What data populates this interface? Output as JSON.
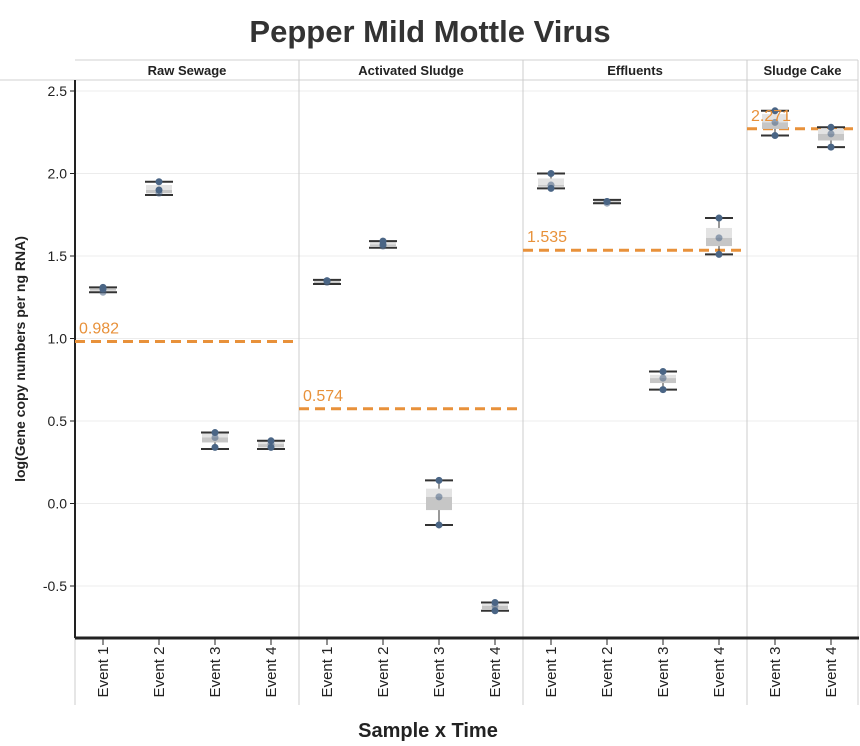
{
  "chart_data": {
    "type": "box",
    "title": "Pepper Mild Mottle Virus",
    "xlabel": "Sample x Time",
    "ylabel": "log(Gene copy numbers per ng RNA)",
    "ylim": [
      -0.82,
      2.58
    ],
    "yticks": [
      "2.5",
      "2.0",
      "1.5",
      "1.0",
      "0.5",
      "0.0",
      "-0.5"
    ],
    "grid": true,
    "panels": [
      {
        "name": "Raw Sewage",
        "mean": 0.982,
        "mean_label": "0.982",
        "events": [
          {
            "label": "Event 1",
            "points": [
              1.3,
              1.28,
              1.31
            ],
            "box": [
              1.28,
              1.29,
              1.3,
              1.305,
              1.31
            ]
          },
          {
            "label": "Event 2",
            "points": [
              1.95,
              1.88,
              1.9
            ],
            "box": [
              1.87,
              1.88,
              1.9,
              1.93,
              1.95
            ]
          },
          {
            "label": "Event 3",
            "points": [
              0.43,
              0.4,
              0.34
            ],
            "box": [
              0.33,
              0.37,
              0.4,
              0.43,
              0.43
            ]
          },
          {
            "label": "Event 4",
            "points": [
              0.38,
              0.36,
              0.34
            ],
            "box": [
              0.33,
              0.34,
              0.36,
              0.38,
              0.38
            ]
          }
        ]
      },
      {
        "name": "Activated Sludge",
        "mean": 0.574,
        "mean_label": "0.574",
        "events": [
          {
            "label": "Event 1",
            "points": [
              1.35,
              1.34,
              1.35
            ],
            "box": [
              1.33,
              1.34,
              1.345,
              1.35,
              1.355
            ]
          },
          {
            "label": "Event 2",
            "points": [
              1.59,
              1.56,
              1.57
            ],
            "box": [
              1.55,
              1.56,
              1.57,
              1.585,
              1.59
            ]
          },
          {
            "label": "Event 3",
            "points": [
              0.14,
              0.04,
              -0.13
            ],
            "box": [
              -0.13,
              -0.04,
              0.04,
              0.09,
              0.14
            ]
          },
          {
            "label": "Event 4",
            "points": [
              -0.6,
              -0.62,
              -0.65
            ],
            "box": [
              -0.65,
              -0.64,
              -0.62,
              -0.61,
              -0.6
            ]
          }
        ]
      },
      {
        "name": "Effluents",
        "mean": 1.535,
        "mean_label": "1.535",
        "events": [
          {
            "label": "Event 1",
            "points": [
              2.0,
              1.93,
              1.91
            ],
            "box": [
              1.91,
              1.92,
              1.93,
              1.97,
              2.0
            ]
          },
          {
            "label": "Event 2",
            "points": [
              1.83,
              1.82,
              1.83
            ],
            "box": [
              1.82,
              1.82,
              1.83,
              1.835,
              1.84
            ]
          },
          {
            "label": "Event 3",
            "points": [
              0.8,
              0.76,
              0.69
            ],
            "box": [
              0.69,
              0.73,
              0.76,
              0.78,
              0.8
            ]
          },
          {
            "label": "Event 4",
            "points": [
              1.73,
              1.61,
              1.51
            ],
            "box": [
              1.51,
              1.56,
              1.61,
              1.67,
              1.73
            ]
          }
        ]
      },
      {
        "name": "Sludge Cake",
        "mean": 2.271,
        "mean_label": "2.271",
        "events": [
          {
            "label": "Event 3",
            "points": [
              2.38,
              2.31,
              2.23
            ],
            "box": [
              2.23,
              2.27,
              2.31,
              2.36,
              2.38
            ]
          },
          {
            "label": "Event 4",
            "points": [
              2.28,
              2.24,
              2.16
            ],
            "box": [
              2.16,
              2.2,
              2.24,
              2.27,
              2.28
            ]
          }
        ]
      }
    ]
  },
  "colors": {
    "mean_line": "#e8913a",
    "point": "#4a6585",
    "box_light": "#e3e3e3",
    "box_dark": "#c6c6c6",
    "whisker": "#333333",
    "title": "#333333"
  }
}
